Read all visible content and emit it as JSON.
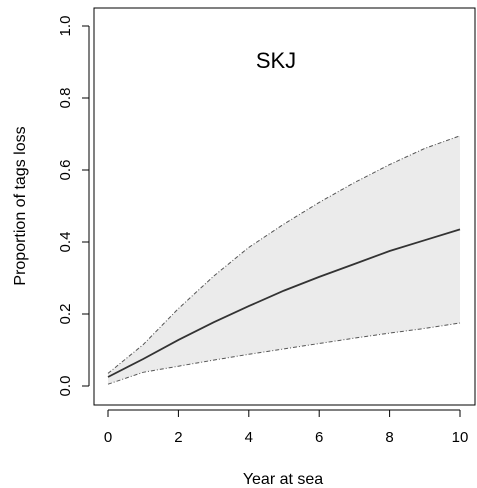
{
  "chart_data": {
    "type": "area",
    "title": "SKJ",
    "xlabel": "Year at sea",
    "ylabel": "Proportion of tags loss",
    "xlim": [
      0,
      10
    ],
    "ylim": [
      0,
      1
    ],
    "x_ticks": [
      0,
      2,
      4,
      6,
      8,
      10
    ],
    "x_tick_labels": [
      "0",
      "2",
      "4",
      "6",
      "8",
      "10"
    ],
    "y_ticks": [
      0,
      0.2,
      0.4,
      0.6,
      0.8,
      1
    ],
    "y_tick_labels": [
      "0.0",
      "0.2",
      "0.4",
      "0.6",
      "0.8",
      "1.0"
    ],
    "grid": false,
    "legend": "none",
    "x": [
      0,
      1,
      2,
      3,
      4,
      5,
      6,
      7,
      8,
      9,
      10
    ],
    "series": [
      {
        "role": "estimate",
        "style": "solid",
        "values": [
          0.025,
          0.075,
          0.128,
          0.177,
          0.222,
          0.265,
          0.303,
          0.339,
          0.375,
          0.405,
          0.435
        ]
      },
      {
        "role": "upper",
        "style": "dotdash",
        "values": [
          0.035,
          0.115,
          0.215,
          0.305,
          0.385,
          0.45,
          0.51,
          0.565,
          0.615,
          0.66,
          0.695
        ]
      },
      {
        "role": "lower",
        "style": "dotdash",
        "values": [
          0.005,
          0.038,
          0.055,
          0.072,
          0.088,
          0.103,
          0.118,
          0.133,
          0.147,
          0.16,
          0.175
        ]
      }
    ],
    "colors": {
      "band_fill": "#ebebeb",
      "line": "#333333",
      "bound_line": "#555555",
      "axis": "#000000"
    }
  }
}
